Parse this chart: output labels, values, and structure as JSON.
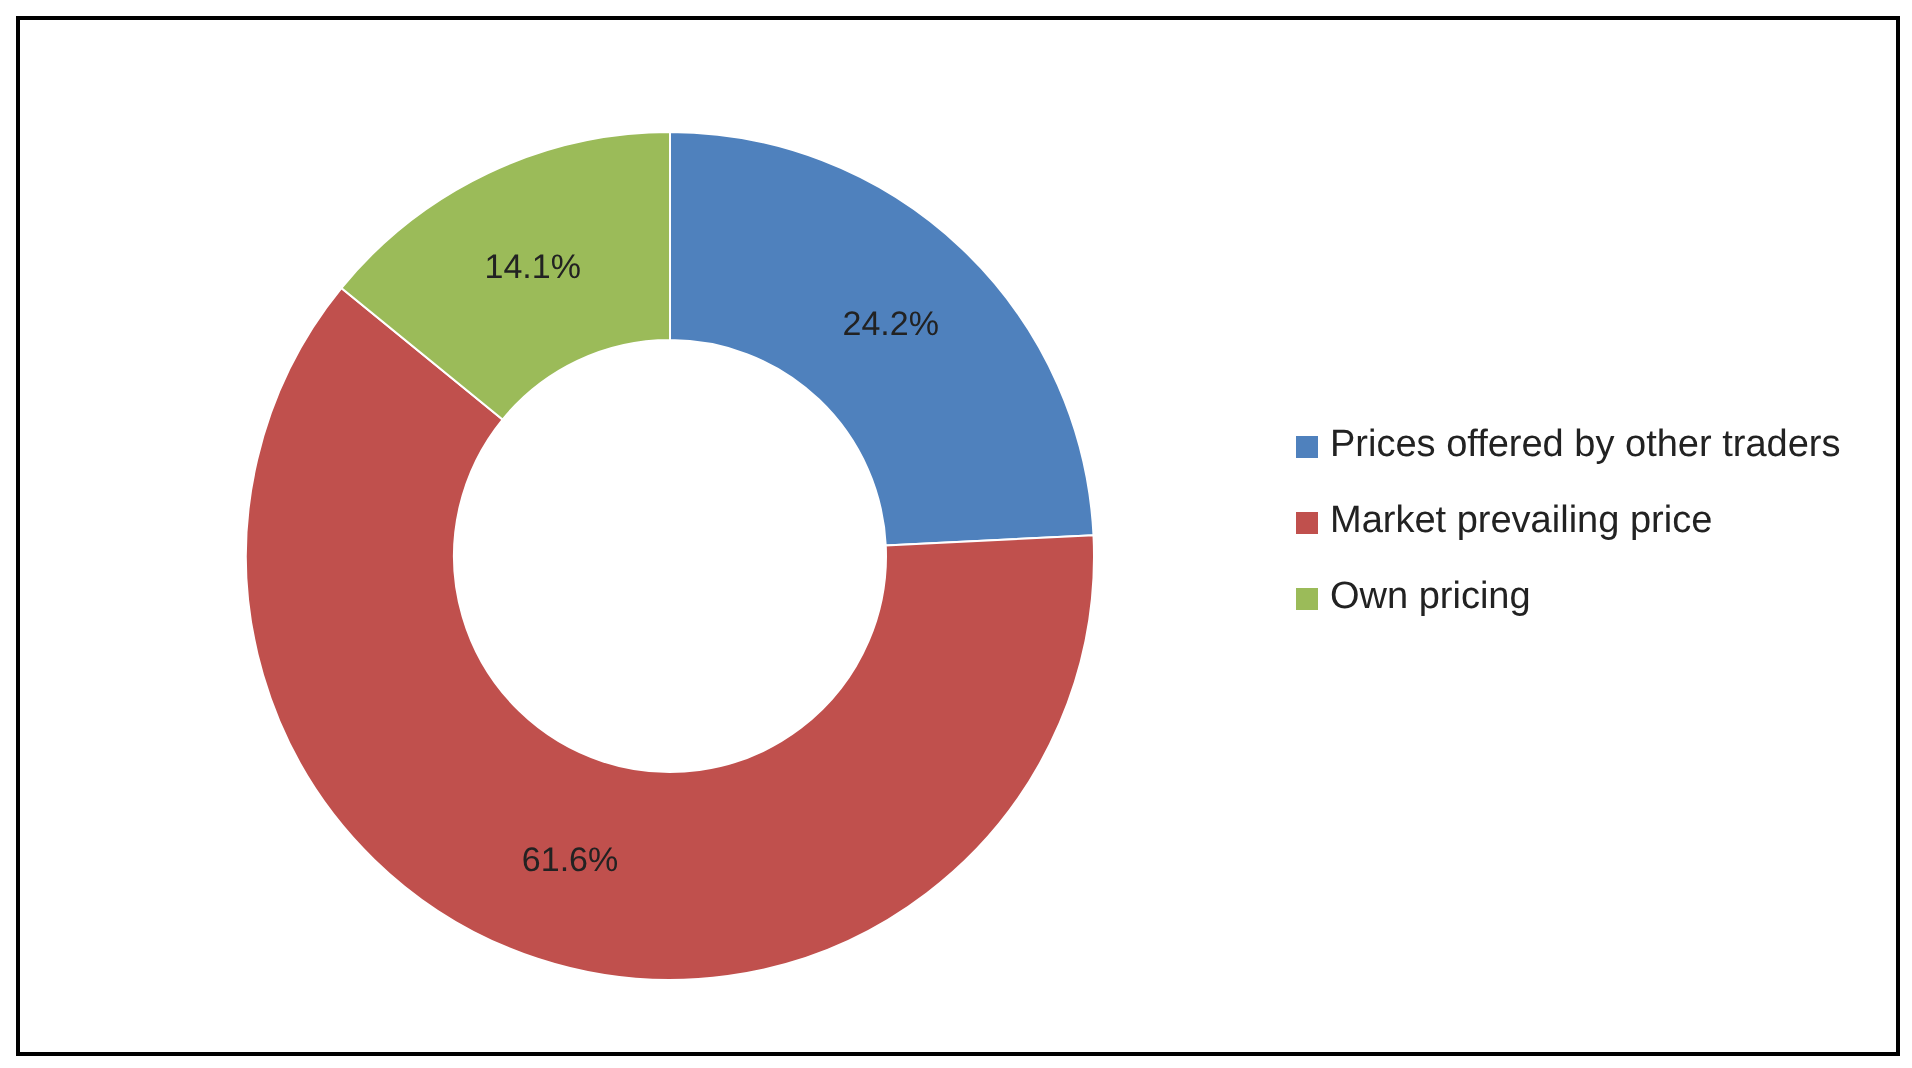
{
  "chart_data": {
    "type": "donut",
    "categories": [
      "Prices offered by other traders",
      "Market prevailing price",
      "Own pricing"
    ],
    "values": [
      24.2,
      61.6,
      14.1
    ],
    "colors": [
      "#4f81bd",
      "#c0504d",
      "#9bbb59"
    ],
    "value_labels": [
      "24.2%",
      "61.6%",
      "14.1%"
    ],
    "legend": "right"
  }
}
